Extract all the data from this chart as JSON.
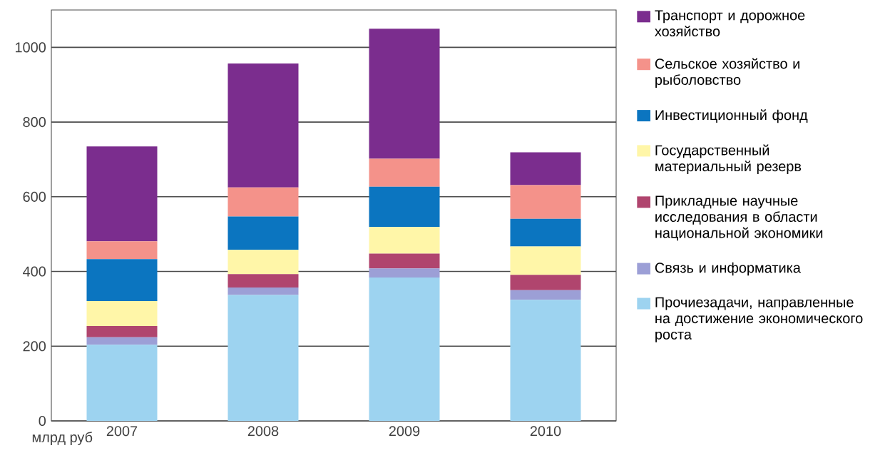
{
  "chart_data": {
    "type": "bar",
    "stacked": true,
    "ylabel": "млрд руб",
    "categories": [
      "2007",
      "2008",
      "2009",
      "2010"
    ],
    "series": [
      {
        "name": "Прочиезадачи, направленные на достижение экономического роста",
        "color": "#9dd3f0",
        "values": [
          204,
          337,
          384,
          324
        ]
      },
      {
        "name": "Связь и информатика",
        "color": "#9c9fd6",
        "values": [
          20,
          20,
          24,
          26
        ]
      },
      {
        "name": "Прикладные  научные исследования в области национальной экономики",
        "color": "#b0456e",
        "values": [
          30,
          36,
          40,
          41
        ]
      },
      {
        "name": "Государственный материальный резерв",
        "color": "#fff6a8",
        "values": [
          67,
          65,
          71,
          76
        ]
      },
      {
        "name": "Инвестиционный фонд",
        "color": "#0b75c0",
        "values": [
          112,
          89,
          108,
          74
        ]
      },
      {
        "name": "Сельское хозяйство и рыболовство",
        "color": "#f4928a",
        "values": [
          48,
          78,
          75,
          90
        ]
      },
      {
        "name": "Транспорт и дорожное хозяйство",
        "color": "#7b2d8e",
        "values": [
          254,
          332,
          348,
          88
        ]
      }
    ],
    "ylim": [
      0,
      1100
    ],
    "yticks": [
      0,
      200,
      400,
      600,
      800,
      1000
    ],
    "grid": "y",
    "legend": "right"
  }
}
